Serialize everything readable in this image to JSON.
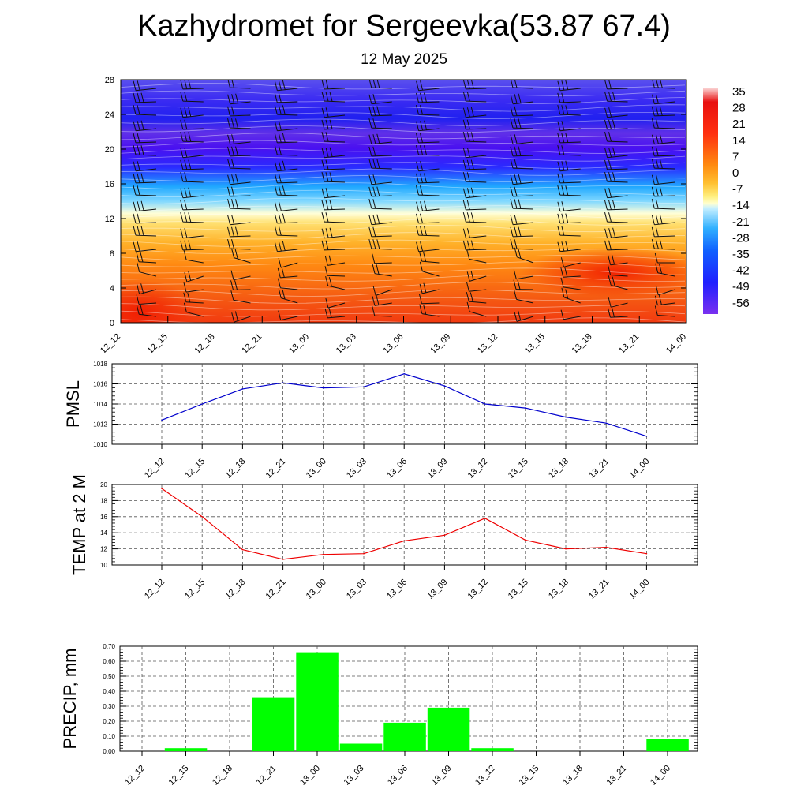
{
  "header": {
    "title": "Kazhydromet for Sergeevka(53.87 67.4)",
    "date": "12 May 2025"
  },
  "colors": {
    "pmsl_line": "#0000cc",
    "temp_line": "#ee0000",
    "precip_bar": "#00ff00",
    "grid": "#555555"
  },
  "chart_data": [
    {
      "type": "heatmap",
      "name": "cross-section",
      "x": [
        "12_12",
        "12_15",
        "12_18",
        "12_21",
        "13_00",
        "13_03",
        "13_06",
        "13_09",
        "13_12",
        "13_15",
        "13_18",
        "13_21",
        "14_00"
      ],
      "y_ticks": [
        0,
        4,
        8,
        12,
        16,
        20,
        24,
        28
      ],
      "ylim": [
        0,
        28
      ],
      "colorbar": {
        "labels": [
          "35",
          "28",
          "21",
          "14",
          "7",
          "0",
          "-7",
          "-14",
          "-21",
          "-28",
          "-35",
          "-42",
          "-49",
          "-56"
        ]
      }
    },
    {
      "type": "line",
      "name": "pmsl",
      "ylabel": "PMSL",
      "x": [
        "12_12",
        "12_15",
        "12_18",
        "12_21",
        "13_00",
        "13_03",
        "13_06",
        "13_09",
        "13_12",
        "13_15",
        "13_18",
        "13_21",
        "14_00"
      ],
      "values": [
        1012.4,
        1014.0,
        1015.5,
        1016.1,
        1015.6,
        1015.7,
        1017.0,
        1015.8,
        1014.0,
        1013.6,
        1012.7,
        1012.1,
        1010.8
      ],
      "ylim": [
        1010,
        1018
      ],
      "y_ticks": [
        "1010",
        "1012",
        "1014",
        "1016",
        "1018"
      ]
    },
    {
      "type": "line",
      "name": "temp",
      "ylabel": "TEMP at 2 M",
      "x": [
        "12_12",
        "12_15",
        "12_18",
        "12_21",
        "13_00",
        "13_03",
        "13_06",
        "13_09",
        "13_12",
        "13_15",
        "13_18",
        "13_21",
        "14_00"
      ],
      "values": [
        19.5,
        16.0,
        11.9,
        10.7,
        11.3,
        11.4,
        13.0,
        13.7,
        15.8,
        13.1,
        12.0,
        12.2,
        11.4
      ],
      "ylim": [
        10,
        20
      ],
      "y_ticks": [
        "10",
        "12",
        "14",
        "16",
        "18",
        "20"
      ]
    },
    {
      "type": "bar",
      "name": "precip",
      "ylabel": "PRECIP, mm",
      "categories": [
        "12_12",
        "12_15",
        "12_18",
        "12_21",
        "13_00",
        "13_03",
        "13_06",
        "13_09",
        "13_12",
        "13_15",
        "13_18",
        "13_21",
        "14_00"
      ],
      "values": [
        0.0,
        0.02,
        0.0,
        0.36,
        0.66,
        0.05,
        0.19,
        0.29,
        0.02,
        0.0,
        0.0,
        0.0,
        0.08
      ],
      "ylim": [
        0,
        0.7
      ],
      "y_ticks": [
        "0.00",
        "0.10",
        "0.20",
        "0.30",
        "0.40",
        "0.50",
        "0.60",
        "0.70"
      ]
    }
  ]
}
